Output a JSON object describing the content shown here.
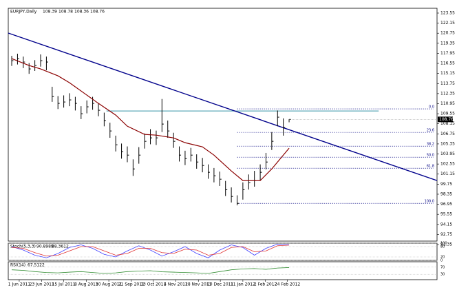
{
  "chart_data": {
    "type": "hlc",
    "symbol": "EURJPY,Daily",
    "last_open": 108.39,
    "color": "#000000",
    "xlim": [
      -0.6,
      73.6
    ],
    "ylim": [
      91.83,
      124.22
    ],
    "yticks": [
      123.55,
      122.15,
      120.75,
      119.35,
      117.95,
      116.55,
      115.15,
      113.75,
      112.35,
      110.95,
      109.55,
      108.15,
      106.75,
      105.35,
      103.95,
      102.55,
      101.15,
      99.75,
      98.35,
      96.95,
      95.55,
      94.15,
      92.75,
      91.35
    ],
    "xticks": [
      {
        "value": 1.3,
        "label": "1 Jun 2011"
      },
      {
        "value": 5.2,
        "label": "23 Jun 2011"
      },
      {
        "value": 9.0,
        "label": "15 Jul 2011"
      },
      {
        "value": 12.9,
        "label": "8 Aug 2011"
      },
      {
        "value": 16.8,
        "label": "30 Aug 2011"
      },
      {
        "value": 20.7,
        "label": "21 Sep 2011"
      },
      {
        "value": 24.5,
        "label": "13 Oct 2011"
      },
      {
        "value": 28.4,
        "label": "4 Nov 2011"
      },
      {
        "value": 32.3,
        "label": "28 Nov 2011"
      },
      {
        "value": 36.1,
        "label": "20 Dec 2011"
      },
      {
        "value": 40.0,
        "label": "11 Jan 2012"
      },
      {
        "value": 43.9,
        "label": "2 Feb 2012"
      },
      {
        "value": 47.7,
        "label": "24 Feb 2012"
      }
    ],
    "high": [
      117.6,
      117.9,
      117.5,
      116.6,
      117.0,
      117.8,
      117.5,
      113.3,
      112.0,
      112.1,
      112.4,
      111.9,
      110.6,
      111.4,
      111.9,
      111.0,
      109.7,
      108.3,
      106.5,
      105.4,
      105.0,
      103.2,
      104.9,
      106.8,
      107.4,
      107.2,
      111.6,
      108.6,
      106.9,
      105.0,
      104.4,
      104.8,
      103.9,
      103.4,
      102.5,
      102.0,
      101.5,
      100.2,
      99.3,
      98.2,
      100.0,
      101.1,
      101.6,
      102.5,
      104.1,
      107.0,
      110.0,
      108.9,
      108.78
    ],
    "low": [
      116.2,
      116.4,
      115.9,
      115.1,
      115.5,
      116.1,
      115.6,
      111.2,
      110.2,
      110.4,
      110.6,
      110.0,
      108.8,
      109.6,
      110.1,
      109.2,
      107.8,
      106.2,
      104.3,
      103.3,
      102.8,
      100.9,
      102.6,
      104.7,
      105.3,
      105.2,
      107.0,
      106.2,
      104.8,
      102.9,
      102.4,
      102.9,
      101.9,
      101.4,
      100.5,
      100.0,
      99.5,
      98.1,
      97.2,
      96.8,
      97.6,
      99.0,
      99.4,
      100.3,
      101.8,
      104.5,
      107.8,
      106.5,
      108.36
    ],
    "close": [
      116.93,
      117.22,
      116.74,
      115.78,
      116.26,
      116.93,
      116.74,
      111.94,
      110.99,
      111.18,
      111.47,
      110.99,
      109.55,
      110.51,
      110.99,
      110.03,
      108.59,
      107.15,
      105.23,
      104.27,
      103.79,
      101.87,
      103.79,
      105.71,
      106.19,
      106.19,
      108.11,
      107.15,
      105.71,
      103.79,
      103.31,
      103.79,
      102.83,
      102.35,
      101.4,
      100.92,
      100.44,
      98.98,
      98.04,
      97.08,
      98.98,
      99.96,
      100.25,
      101.4,
      102.83,
      105.71,
      109.07,
      107.63,
      108.76
    ],
    "moving_average": {
      "color": "#8b0000",
      "x": [
        0,
        3,
        5,
        8,
        10,
        13,
        15,
        18,
        20,
        23,
        25,
        28,
        30,
        33,
        35,
        38,
        40,
        43,
        45,
        48
      ],
      "values": [
        117.22,
        116.26,
        115.78,
        114.82,
        113.86,
        112.14,
        110.99,
        109.36,
        107.82,
        106.67,
        106.57,
        106.19,
        105.52,
        104.94,
        103.79,
        101.59,
        100.25,
        100.25,
        101.87,
        104.75
      ]
    },
    "trendline": {
      "color": "#00008b",
      "values": [
        120.77,
        100.25
      ]
    },
    "resistance": {
      "color": "#5fa8b8",
      "price": 109.93,
      "x": [
        16.4,
        63.5
      ]
    },
    "fib": {
      "x": 39,
      "color": "#000080",
      "levels": [
        {
          "label": "0.0",
          "price": 110.22
        },
        {
          "label": "23.6",
          "price": 106.96
        },
        {
          "label": "38.2",
          "price": 105.04
        },
        {
          "label": "50.0",
          "price": 103.5
        },
        {
          "label": "61.8",
          "price": 101.97
        },
        {
          "label": "100.0",
          "price": 97.08
        }
      ]
    },
    "stoch": {
      "name": "Stoch(5,3,3)",
      "ylim": [
        0,
        100
      ],
      "yticks": [
        0,
        20,
        80,
        100
      ],
      "x": [
        0,
        2,
        4,
        6,
        8,
        10,
        12,
        14,
        16,
        18,
        20,
        22,
        24,
        26,
        28,
        30,
        32,
        34,
        36,
        38,
        40,
        42,
        44,
        46,
        48
      ],
      "series": [
        {
          "color": "#4040ff",
          "values": [
            80,
            60,
            30,
            15,
            40,
            75,
            90,
            70,
            35,
            20,
            55,
            85,
            60,
            25,
            50,
            80,
            40,
            15,
            60,
            90,
            75,
            30,
            70,
            95,
            90.8989
          ]
        },
        {
          "color": "#e03030",
          "values": [
            75,
            70,
            45,
            25,
            30,
            55,
            80,
            80,
            55,
            30,
            40,
            70,
            70,
            45,
            40,
            65,
            60,
            30,
            40,
            75,
            80,
            50,
            55,
            85,
            88.3612
          ]
        }
      ]
    },
    "rsi": {
      "name": "RSI(14)",
      "color": "#2e8b2e",
      "ylim": [
        0,
        100
      ],
      "yticks": [
        30,
        70
      ],
      "x": [
        0,
        2,
        4,
        6,
        8,
        10,
        12,
        14,
        16,
        18,
        20,
        22,
        24,
        26,
        28,
        30,
        32,
        34,
        36,
        38,
        40,
        42,
        44,
        46,
        48
      ],
      "values": [
        55,
        52,
        45,
        40,
        38,
        42,
        45,
        40,
        35,
        38,
        45,
        48,
        50,
        44,
        42,
        40,
        38,
        35,
        45,
        55,
        60,
        62,
        58,
        65,
        67.5122
      ]
    }
  }
}
